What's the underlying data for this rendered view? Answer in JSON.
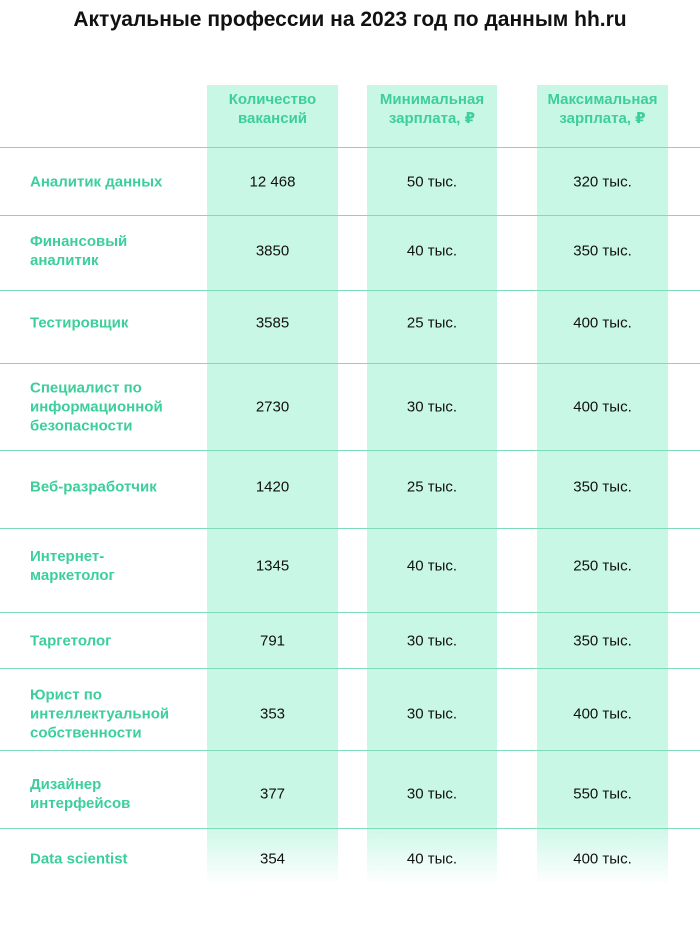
{
  "title": "Актуальные профессии на 2023 год по данным hh.ru",
  "table": {
    "headers": [
      "Количество\nвакансий",
      "Минимальная\nзарплата, ₽",
      "Максимальная\nзарплата, ₽"
    ],
    "rows": [
      [
        "Аналитик данных",
        "12 468",
        "50 тыс.",
        "320 тыс."
      ],
      [
        "Финансовый\nаналитик",
        "3850",
        "40 тыс.",
        "350 тыс."
      ],
      [
        "Тестировщик",
        "3585",
        "25 тыс.",
        "400 тыс."
      ],
      [
        "Специалист по\nинформационной\nбезопасности",
        "2730",
        "30 тыс.",
        "400 тыс."
      ],
      [
        "Веб-разработчик",
        "1420",
        "25 тыс.",
        "350 тыс."
      ],
      [
        "Интернет-\nмаркетолог",
        "1345",
        "40 тыс.",
        "250 тыс."
      ],
      [
        "Таргетолог",
        "791",
        "30 тыс.",
        "350 тыс."
      ],
      [
        "Юрист по\nинтеллектуальной\nсобственности",
        "353",
        "30 тыс.",
        "400 тыс."
      ],
      [
        "Дизайнер\nинтерфейсов",
        "377",
        "30 тыс.",
        "550 тыс."
      ],
      [
        "Data scientist",
        "354",
        "40 тыс.",
        "400 тыс."
      ]
    ]
  }
}
